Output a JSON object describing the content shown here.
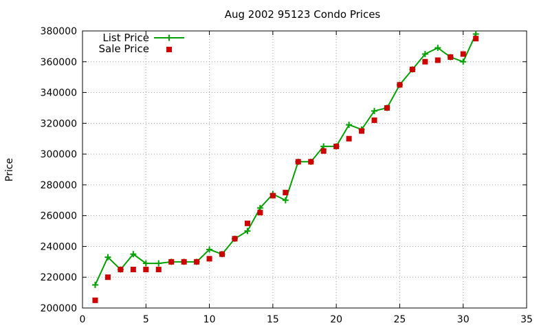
{
  "chart_data": {
    "type": "line",
    "title": "Aug 2002 95123 Condo Prices",
    "xlabel": "",
    "ylabel": "Price",
    "xlim": [
      0,
      35
    ],
    "ylim": [
      200000,
      380000
    ],
    "xticks": [
      0,
      5,
      10,
      15,
      20,
      25,
      30,
      35
    ],
    "yticks": [
      200000,
      220000,
      240000,
      260000,
      280000,
      300000,
      320000,
      340000,
      360000,
      380000
    ],
    "grid": true,
    "legend_position": "top-left",
    "series": [
      {
        "name": "List Price",
        "style": "line-plus",
        "color": "#00a000",
        "x": [
          1,
          2,
          3,
          4,
          5,
          6,
          7,
          8,
          9,
          10,
          11,
          12,
          13,
          14,
          15,
          16,
          17,
          18,
          19,
          20,
          21,
          22,
          23,
          24,
          25,
          26,
          27,
          28,
          29,
          30,
          31
        ],
        "values": [
          215000,
          233000,
          225000,
          235000,
          229000,
          229000,
          230000,
          230000,
          230000,
          238000,
          235000,
          245000,
          250000,
          265000,
          274000,
          270000,
          295000,
          295000,
          305000,
          305000,
          319000,
          316000,
          328000,
          330000,
          345000,
          355000,
          365000,
          369000,
          363000,
          360000,
          378000
        ]
      },
      {
        "name": "Sale Price",
        "style": "square-points",
        "color": "#cc0000",
        "x": [
          1,
          2,
          3,
          4,
          5,
          6,
          7,
          8,
          9,
          10,
          11,
          12,
          13,
          14,
          15,
          16,
          17,
          18,
          19,
          20,
          21,
          22,
          23,
          24,
          25,
          26,
          27,
          28,
          29,
          30,
          31
        ],
        "values": [
          205000,
          220000,
          225000,
          225000,
          225000,
          225000,
          230000,
          230000,
          230000,
          232000,
          235000,
          245000,
          255000,
          262000,
          273000,
          275000,
          295000,
          295000,
          302000,
          305000,
          310000,
          315000,
          322000,
          330000,
          345000,
          355000,
          360000,
          361000,
          363000,
          365000,
          375000
        ]
      }
    ]
  }
}
